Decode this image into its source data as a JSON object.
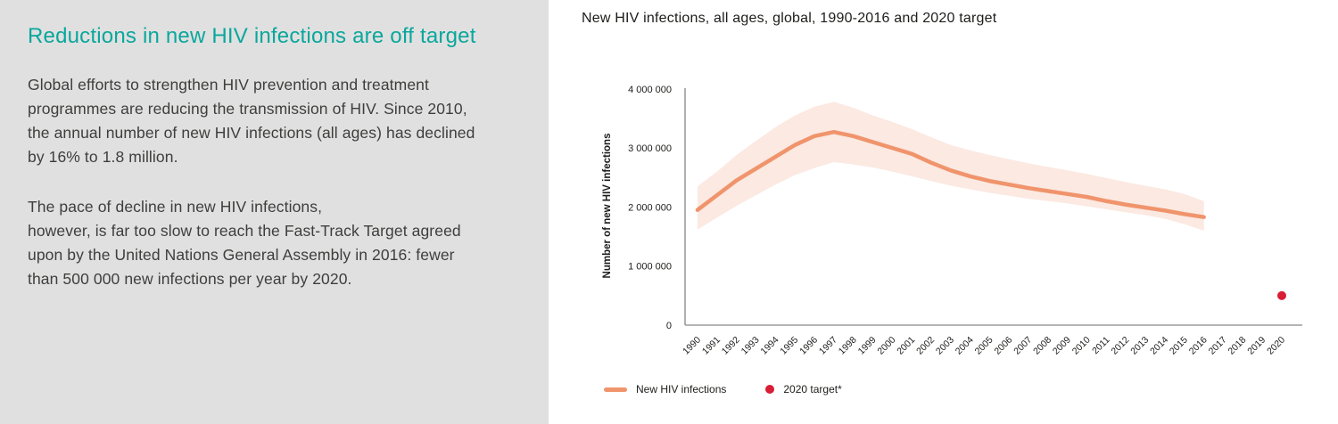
{
  "left_panel": {
    "heading": "Reductions in new HIV infections are off target",
    "paragraph1": "Global efforts to strengthen HIV prevention and treatment\nprogrammes are reducing the transmission of HIV. Since 2010,\nthe annual number of new HIV infections (all ages) has declined\nby 16% to 1.8 million.",
    "paragraph2": "The pace of decline in new HIV infections,\nhowever, is far too slow to reach the Fast-Track Target agreed\nupon by the United Nations General Assembly in 2016: fewer\nthan 500 000 new infections per year by 2020."
  },
  "chart": {
    "title": "New HIV infections, all ages, global, 1990-2016 and 2020 target",
    "legend_line_label": "New HIV infections",
    "legend_target_label": "2020 target*"
  },
  "colors": {
    "panel_bg": "#E0E0E0",
    "heading_teal": "#0AA79C",
    "body_text": "#3E3E3D",
    "title_text": "#1D1D1B",
    "line_orange": "#F0946C",
    "band_pink": "#FBE9E2",
    "target_red": "#D81E35",
    "axis_gray": "#9B9B9B"
  },
  "chart_data": {
    "type": "line",
    "title": "New HIV infections, all ages, global, 1990-2016 and 2020 target",
    "xlabel": "",
    "ylabel": "Number of new HIV infections",
    "unit": "millions of new HIV infections per year",
    "x": [
      1990,
      1991,
      1992,
      1993,
      1994,
      1995,
      1996,
      1997,
      1998,
      1999,
      2000,
      2001,
      2002,
      2003,
      2004,
      2005,
      2006,
      2007,
      2008,
      2009,
      2010,
      2011,
      2012,
      2013,
      2014,
      2015,
      2016
    ],
    "series": [
      {
        "name": "New HIV infections",
        "values": [
          1.95,
          2.2,
          2.45,
          2.65,
          2.85,
          3.05,
          3.2,
          3.27,
          3.2,
          3.1,
          3.0,
          2.9,
          2.75,
          2.62,
          2.52,
          2.44,
          2.38,
          2.32,
          2.27,
          2.22,
          2.17,
          2.1,
          2.04,
          1.99,
          1.94,
          1.88,
          1.83
        ]
      }
    ],
    "uncertainty_band": {
      "upper": [
        2.35,
        2.6,
        2.88,
        3.12,
        3.35,
        3.55,
        3.7,
        3.78,
        3.68,
        3.55,
        3.44,
        3.32,
        3.18,
        3.05,
        2.96,
        2.88,
        2.81,
        2.74,
        2.68,
        2.62,
        2.56,
        2.49,
        2.42,
        2.36,
        2.3,
        2.22,
        2.1
      ],
      "lower": [
        1.62,
        1.82,
        2.02,
        2.2,
        2.38,
        2.54,
        2.66,
        2.76,
        2.72,
        2.67,
        2.6,
        2.52,
        2.44,
        2.36,
        2.3,
        2.24,
        2.19,
        2.14,
        2.1,
        2.06,
        2.01,
        1.96,
        1.91,
        1.86,
        1.8,
        1.71,
        1.6
      ]
    },
    "target_point": {
      "x": 2020,
      "value": 0.5,
      "label": "2020 target*"
    },
    "x_ticks": [
      1990,
      1991,
      1992,
      1993,
      1994,
      1995,
      1996,
      1997,
      1998,
      1999,
      2000,
      2001,
      2002,
      2003,
      2004,
      2005,
      2006,
      2007,
      2008,
      2009,
      2010,
      2011,
      2012,
      2013,
      2014,
      2015,
      2016,
      2017,
      2018,
      2019,
      2020
    ],
    "y_ticks": [
      0,
      1,
      2,
      3,
      4
    ],
    "y_tick_labels": [
      "0",
      "1 000 000",
      "2 000 000",
      "3 000 000",
      "4 000 000"
    ],
    "ylim": [
      0,
      4
    ],
    "grid": false,
    "legend_position": "bottom"
  }
}
